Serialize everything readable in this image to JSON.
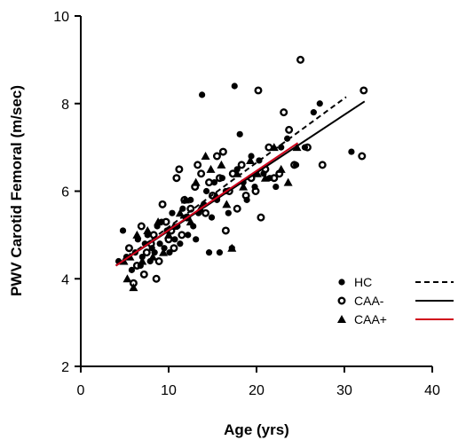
{
  "chart_data": {
    "type": "scatter",
    "xlabel": "Age (yrs)",
    "ylabel": "PWV Carotid Femoral (m/sec)",
    "xlim": [
      0,
      40
    ],
    "ylim": [
      2,
      10
    ],
    "xticks": [
      0,
      10,
      20,
      30,
      40
    ],
    "yticks": [
      2,
      4,
      6,
      8,
      10
    ],
    "grid": false,
    "legend_position": "bottom-right",
    "series": [
      {
        "name": "HC",
        "marker": "filled-circle",
        "line_style": "dashed",
        "line_color": "#000000",
        "fit": {
          "x": [
            4,
            30.2
          ],
          "y": [
            4.3,
            8.15
          ]
        },
        "points": [
          [
            4.3,
            4.4
          ],
          [
            4.8,
            5.1
          ],
          [
            5.2,
            4.5
          ],
          [
            5.8,
            4.2
          ],
          [
            6.2,
            4.6
          ],
          [
            6.5,
            4.9
          ],
          [
            6.8,
            4.3
          ],
          [
            7.0,
            4.5
          ],
          [
            7.3,
            4.8
          ],
          [
            7.6,
            5.0
          ],
          [
            7.9,
            4.4
          ],
          [
            8.1,
            4.7
          ],
          [
            8.4,
            4.6
          ],
          [
            8.7,
            5.2
          ],
          [
            9.0,
            4.8
          ],
          [
            9.2,
            5.3
          ],
          [
            9.5,
            4.7
          ],
          [
            9.8,
            5.1
          ],
          [
            10.1,
            4.6
          ],
          [
            10.4,
            5.5
          ],
          [
            10.7,
            4.9
          ],
          [
            11.0,
            5.2
          ],
          [
            11.3,
            4.8
          ],
          [
            11.6,
            5.6
          ],
          [
            11.9,
            5.4
          ],
          [
            12.2,
            5.0
          ],
          [
            12.5,
            5.8
          ],
          [
            12.8,
            5.2
          ],
          [
            13.1,
            4.9
          ],
          [
            13.4,
            5.5
          ],
          [
            13.8,
            8.2
          ],
          [
            14.0,
            5.7
          ],
          [
            14.3,
            6.0
          ],
          [
            14.6,
            4.6
          ],
          [
            14.9,
            5.4
          ],
          [
            15.2,
            6.2
          ],
          [
            15.5,
            5.8
          ],
          [
            15.8,
            4.6
          ],
          [
            16.1,
            6.3
          ],
          [
            16.5,
            6.0
          ],
          [
            16.8,
            5.5
          ],
          [
            17.2,
            4.7
          ],
          [
            17.5,
            8.4
          ],
          [
            17.8,
            6.5
          ],
          [
            18.1,
            7.3
          ],
          [
            18.5,
            6.2
          ],
          [
            18.9,
            5.8
          ],
          [
            19.4,
            6.8
          ],
          [
            19.8,
            6.1
          ],
          [
            20.3,
            6.7
          ],
          [
            20.8,
            6.4
          ],
          [
            21.5,
            6.3
          ],
          [
            22.2,
            6.1
          ],
          [
            22.8,
            7.0
          ],
          [
            23.5,
            7.2
          ],
          [
            24.5,
            6.6
          ],
          [
            25.5,
            7.0
          ],
          [
            26.5,
            7.8
          ],
          [
            27.2,
            8.0
          ],
          [
            30.8,
            6.9
          ]
        ]
      },
      {
        "name": "CAA-",
        "marker": "open-circle",
        "line_style": "solid",
        "line_color": "#000000",
        "fit": {
          "x": [
            4,
            32.3
          ],
          "y": [
            4.3,
            8.05
          ]
        },
        "points": [
          [
            5.5,
            4.7
          ],
          [
            6.0,
            3.9
          ],
          [
            6.4,
            4.3
          ],
          [
            6.9,
            5.2
          ],
          [
            7.2,
            4.1
          ],
          [
            7.5,
            4.6
          ],
          [
            8.0,
            4.8
          ],
          [
            8.3,
            5.0
          ],
          [
            8.6,
            4.0
          ],
          [
            8.9,
            4.4
          ],
          [
            9.3,
            5.7
          ],
          [
            9.7,
            5.3
          ],
          [
            10.0,
            4.9
          ],
          [
            10.3,
            5.1
          ],
          [
            10.6,
            4.7
          ],
          [
            10.9,
            6.3
          ],
          [
            11.2,
            6.5
          ],
          [
            11.5,
            5.0
          ],
          [
            11.8,
            5.8
          ],
          [
            12.1,
            5.4
          ],
          [
            12.5,
            5.6
          ],
          [
            13.0,
            6.1
          ],
          [
            13.3,
            6.6
          ],
          [
            13.7,
            6.4
          ],
          [
            14.2,
            5.5
          ],
          [
            14.6,
            6.2
          ],
          [
            15.0,
            5.9
          ],
          [
            15.5,
            6.8
          ],
          [
            15.8,
            6.3
          ],
          [
            16.2,
            6.9
          ],
          [
            16.5,
            5.1
          ],
          [
            16.9,
            6.0
          ],
          [
            17.3,
            6.4
          ],
          [
            17.8,
            5.6
          ],
          [
            18.3,
            6.6
          ],
          [
            18.8,
            5.9
          ],
          [
            19.4,
            6.3
          ],
          [
            19.9,
            6.0
          ],
          [
            20.2,
            8.3
          ],
          [
            20.5,
            5.4
          ],
          [
            21.0,
            6.5
          ],
          [
            21.4,
            7.0
          ],
          [
            22.0,
            6.3
          ],
          [
            22.6,
            6.4
          ],
          [
            23.1,
            7.8
          ],
          [
            23.7,
            7.4
          ],
          [
            24.3,
            6.6
          ],
          [
            25.0,
            9.0
          ],
          [
            25.8,
            7.0
          ],
          [
            27.5,
            6.6
          ],
          [
            32.2,
            8.3
          ],
          [
            32.0,
            6.8
          ]
        ]
      },
      {
        "name": "CAA+",
        "marker": "filled-triangle",
        "line_style": "solid",
        "line_color": "#d0021b",
        "fit": {
          "x": [
            4,
            24.7
          ],
          "y": [
            4.3,
            7.1
          ]
        },
        "points": [
          [
            4.9,
            4.4
          ],
          [
            5.3,
            4.0
          ],
          [
            5.6,
            4.5
          ],
          [
            6.0,
            3.8
          ],
          [
            6.4,
            5.0
          ],
          [
            7.0,
            4.4
          ],
          [
            7.6,
            5.1
          ],
          [
            8.2,
            4.5
          ],
          [
            8.8,
            5.3
          ],
          [
            9.4,
            4.6
          ],
          [
            10.0,
            5.0
          ],
          [
            10.6,
            5.2
          ],
          [
            11.3,
            5.5
          ],
          [
            11.9,
            5.8
          ],
          [
            12.5,
            5.3
          ],
          [
            13.1,
            6.2
          ],
          [
            13.6,
            5.6
          ],
          [
            14.2,
            6.8
          ],
          [
            14.8,
            6.5
          ],
          [
            15.4,
            5.9
          ],
          [
            16.0,
            6.6
          ],
          [
            16.6,
            5.7
          ],
          [
            17.2,
            4.7
          ],
          [
            17.8,
            6.4
          ],
          [
            18.5,
            6.1
          ],
          [
            19.3,
            6.7
          ],
          [
            20.1,
            6.4
          ],
          [
            21.0,
            6.3
          ],
          [
            22.0,
            7.0
          ],
          [
            22.8,
            6.5
          ],
          [
            23.6,
            6.2
          ],
          [
            24.6,
            7.0
          ]
        ]
      }
    ]
  }
}
